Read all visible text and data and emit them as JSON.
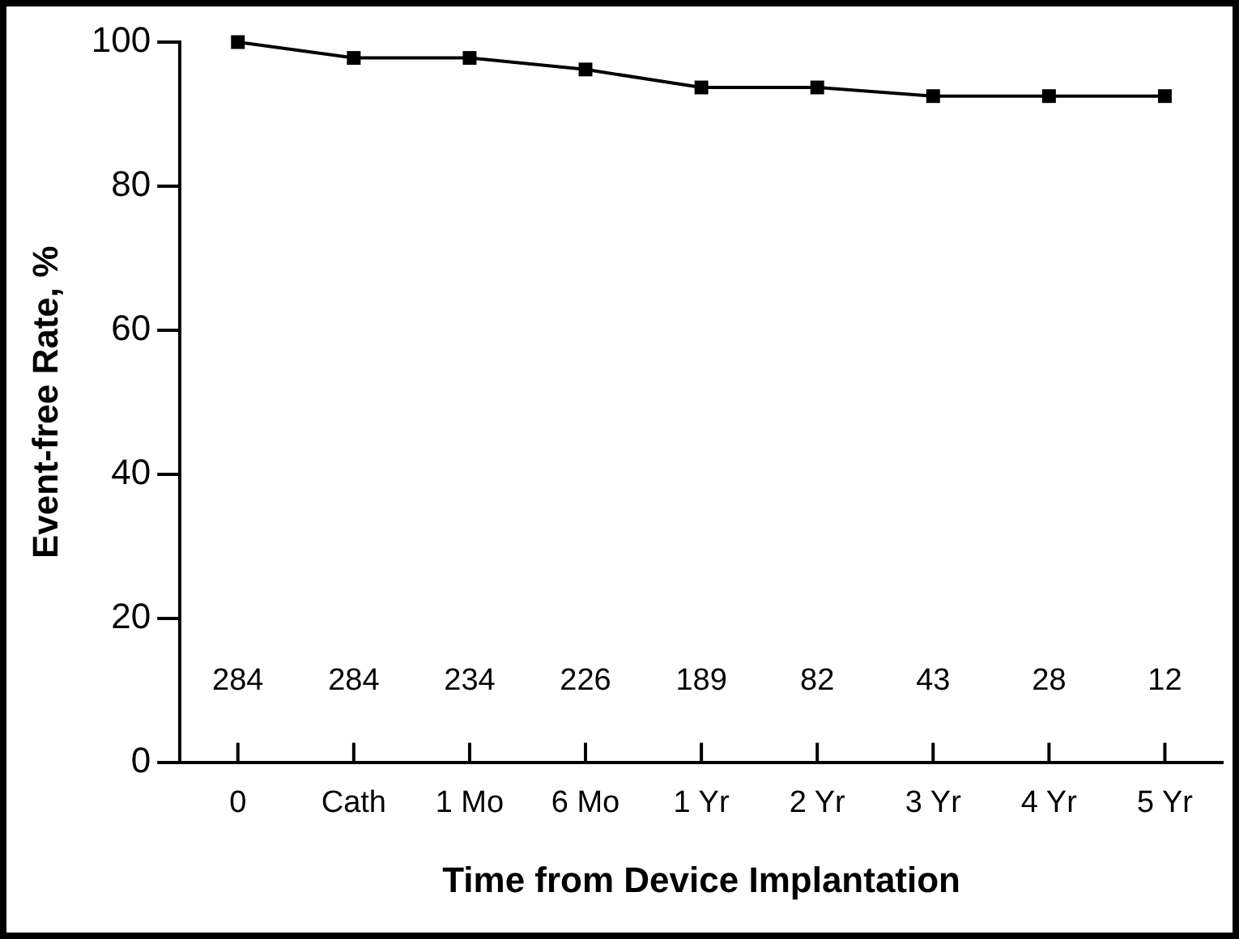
{
  "chart_data": {
    "type": "line",
    "xlabel": "Time from Device Implantation",
    "ylabel": "Event-free Rate, %",
    "categories": [
      "0",
      "Cath",
      "1 Mo",
      "6 Mo",
      "1 Yr",
      "2 Yr",
      "3 Yr",
      "4 Yr",
      "5 Yr"
    ],
    "series": [
      {
        "color": "#000000",
        "values": [
          100,
          97.8,
          97.8,
          96.2,
          93.7,
          93.7,
          92.5,
          92.5,
          92.5
        ]
      }
    ],
    "ylim": [
      0,
      100
    ],
    "yticks": [
      0,
      20,
      40,
      60,
      80,
      100
    ],
    "grid": false,
    "legend": false,
    "marker": "square",
    "line_style": "solid",
    "annotations": [
      "284",
      "284",
      "234",
      "226",
      "189",
      "82",
      "43",
      "28",
      "12"
    ]
  }
}
